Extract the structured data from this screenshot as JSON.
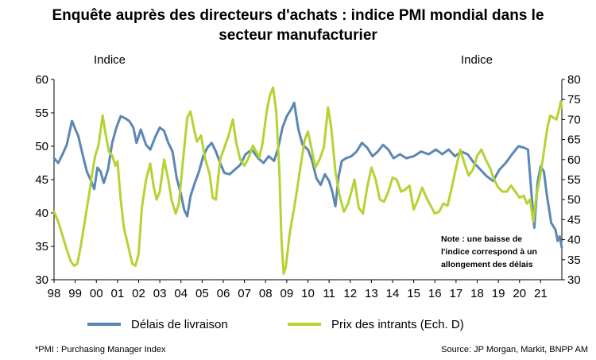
{
  "chart_data": {
    "type": "line",
    "title_lines": [
      "Enquête auprès des directeurs d'achats : indice PMI mondial dans le",
      "secteur manufacturier"
    ],
    "left_axis_unit": "Indice",
    "right_axis_unit": "Indice",
    "ylim_left": [
      30,
      60
    ],
    "ylim_right": [
      30,
      80
    ],
    "yticks_left": [
      "30",
      "35",
      "40",
      "45",
      "50",
      "55",
      "60"
    ],
    "yticks_right": [
      "30",
      "35",
      "40",
      "45",
      "50",
      "55",
      "60",
      "65",
      "70",
      "75",
      "80"
    ],
    "xticks": [
      "98",
      "99",
      "00",
      "01",
      "02",
      "03",
      "04",
      "05",
      "06",
      "07",
      "08",
      "09",
      "10",
      "11",
      "12",
      "13",
      "14",
      "15",
      "16",
      "17",
      "18",
      "19",
      "20",
      "21"
    ],
    "xlim": [
      1998.0,
      2022.0
    ],
    "grid": false,
    "legend_position": "bottom",
    "series": [
      {
        "name": "Délais de livraison",
        "axis": "left",
        "color": "#5B87B5",
        "points": [
          [
            1998.0,
            48.2
          ],
          [
            1998.2,
            47.5
          ],
          [
            1998.4,
            48.8
          ],
          [
            1998.6,
            50.2
          ],
          [
            1998.85,
            53.8
          ],
          [
            1999.0,
            52.6
          ],
          [
            1999.15,
            51.5
          ],
          [
            1999.35,
            48.8
          ],
          [
            1999.55,
            46.2
          ],
          [
            1999.75,
            44.8
          ],
          [
            1999.9,
            43.6
          ],
          [
            2000.05,
            46.8
          ],
          [
            2000.2,
            46.2
          ],
          [
            2000.35,
            44.5
          ],
          [
            2000.55,
            46.5
          ],
          [
            2000.75,
            50.5
          ],
          [
            2000.95,
            52.8
          ],
          [
            2001.15,
            54.5
          ],
          [
            2001.35,
            54.2
          ],
          [
            2001.55,
            53.8
          ],
          [
            2001.75,
            52.8
          ],
          [
            2001.9,
            50.5
          ],
          [
            2002.1,
            52.5
          ],
          [
            2002.35,
            50.2
          ],
          [
            2002.55,
            49.5
          ],
          [
            2002.8,
            51.5
          ],
          [
            2003.0,
            52.8
          ],
          [
            2003.2,
            52.3
          ],
          [
            2003.4,
            50.5
          ],
          [
            2003.6,
            49.2
          ],
          [
            2003.8,
            45.2
          ],
          [
            2004.0,
            42.8
          ],
          [
            2004.15,
            40.5
          ],
          [
            2004.3,
            39.5
          ],
          [
            2004.45,
            42.5
          ],
          [
            2004.65,
            44.5
          ],
          [
            2004.85,
            46.2
          ],
          [
            2005.05,
            48.5
          ],
          [
            2005.25,
            49.8
          ],
          [
            2005.45,
            50.5
          ],
          [
            2005.65,
            49.2
          ],
          [
            2005.85,
            47.5
          ],
          [
            2006.05,
            46.0
          ],
          [
            2006.3,
            45.8
          ],
          [
            2006.55,
            46.5
          ],
          [
            2006.8,
            47.2
          ],
          [
            2007.05,
            48.8
          ],
          [
            2007.35,
            49.5
          ],
          [
            2007.65,
            48.2
          ],
          [
            2007.9,
            47.5
          ],
          [
            2008.15,
            48.5
          ],
          [
            2008.4,
            47.8
          ],
          [
            2008.6,
            49.8
          ],
          [
            2008.8,
            52.8
          ],
          [
            2009.0,
            54.5
          ],
          [
            2009.2,
            55.5
          ],
          [
            2009.35,
            56.5
          ],
          [
            2009.55,
            52.5
          ],
          [
            2009.75,
            50.2
          ],
          [
            2010.0,
            49.5
          ],
          [
            2010.2,
            47.8
          ],
          [
            2010.4,
            45.2
          ],
          [
            2010.6,
            44.2
          ],
          [
            2010.8,
            45.8
          ],
          [
            2011.0,
            44.8
          ],
          [
            2011.15,
            43.2
          ],
          [
            2011.3,
            41.0
          ],
          [
            2011.45,
            45.5
          ],
          [
            2011.6,
            47.8
          ],
          [
            2011.8,
            48.2
          ],
          [
            2012.05,
            48.5
          ],
          [
            2012.3,
            49.2
          ],
          [
            2012.55,
            50.5
          ],
          [
            2012.8,
            49.8
          ],
          [
            2013.05,
            48.5
          ],
          [
            2013.3,
            49.2
          ],
          [
            2013.55,
            50.2
          ],
          [
            2013.8,
            49.5
          ],
          [
            2014.05,
            48.2
          ],
          [
            2014.35,
            48.8
          ],
          [
            2014.65,
            48.2
          ],
          [
            2015.0,
            48.5
          ],
          [
            2015.35,
            49.2
          ],
          [
            2015.7,
            48.8
          ],
          [
            2016.05,
            49.5
          ],
          [
            2016.35,
            48.8
          ],
          [
            2016.65,
            49.5
          ],
          [
            2016.95,
            48.5
          ],
          [
            2017.25,
            49.2
          ],
          [
            2017.55,
            48.8
          ],
          [
            2017.85,
            47.5
          ],
          [
            2018.15,
            46.5
          ],
          [
            2018.45,
            45.5
          ],
          [
            2018.75,
            44.8
          ],
          [
            2019.05,
            46.5
          ],
          [
            2019.35,
            47.5
          ],
          [
            2019.65,
            48.8
          ],
          [
            2019.95,
            50.0
          ],
          [
            2020.2,
            49.8
          ],
          [
            2020.4,
            49.5
          ],
          [
            2020.55,
            43.5
          ],
          [
            2020.7,
            37.8
          ],
          [
            2020.85,
            44.5
          ],
          [
            2021.0,
            47.0
          ],
          [
            2021.15,
            46.2
          ],
          [
            2021.3,
            42.5
          ],
          [
            2021.5,
            38.5
          ],
          [
            2021.7,
            37.5
          ],
          [
            2021.8,
            35.8
          ],
          [
            2021.9,
            36.5
          ],
          [
            2022.0,
            34.8
          ]
        ]
      },
      {
        "name": "Prix des intrants (Ech. D)",
        "axis": "right",
        "color": "#B5D334",
        "points": [
          [
            1998.0,
            47.0
          ],
          [
            1998.2,
            44.5
          ],
          [
            1998.4,
            41.0
          ],
          [
            1998.6,
            37.5
          ],
          [
            1998.8,
            34.5
          ],
          [
            1998.95,
            33.5
          ],
          [
            1999.1,
            34.0
          ],
          [
            1999.25,
            38.0
          ],
          [
            1999.45,
            44.5
          ],
          [
            1999.65,
            51.0
          ],
          [
            1999.8,
            56.5
          ],
          [
            1999.95,
            61.0
          ],
          [
            2000.1,
            63.5
          ],
          [
            2000.3,
            71.0
          ],
          [
            2000.45,
            66.0
          ],
          [
            2000.6,
            62.0
          ],
          [
            2000.75,
            61.0
          ],
          [
            2000.9,
            58.5
          ],
          [
            2001.0,
            59.5
          ],
          [
            2001.15,
            50.0
          ],
          [
            2001.3,
            43.0
          ],
          [
            2001.5,
            38.5
          ],
          [
            2001.7,
            34.0
          ],
          [
            2001.85,
            33.5
          ],
          [
            2002.0,
            36.5
          ],
          [
            2002.15,
            48.0
          ],
          [
            2002.35,
            55.0
          ],
          [
            2002.55,
            59.0
          ],
          [
            2002.7,
            53.5
          ],
          [
            2002.85,
            50.0
          ],
          [
            2003.0,
            52.0
          ],
          [
            2003.2,
            60.0
          ],
          [
            2003.4,
            55.0
          ],
          [
            2003.55,
            50.0
          ],
          [
            2003.75,
            46.5
          ],
          [
            2003.9,
            49.0
          ],
          [
            2004.1,
            60.0
          ],
          [
            2004.3,
            70.5
          ],
          [
            2004.45,
            72.0
          ],
          [
            2004.6,
            68.0
          ],
          [
            2004.75,
            64.5
          ],
          [
            2004.95,
            66.0
          ],
          [
            2005.15,
            60.0
          ],
          [
            2005.35,
            56.5
          ],
          [
            2005.5,
            50.5
          ],
          [
            2005.65,
            50.0
          ],
          [
            2005.85,
            60.0
          ],
          [
            2006.05,
            63.0
          ],
          [
            2006.25,
            66.0
          ],
          [
            2006.45,
            70.0
          ],
          [
            2006.6,
            64.5
          ],
          [
            2006.8,
            60.0
          ],
          [
            2007.0,
            58.5
          ],
          [
            2007.2,
            60.5
          ],
          [
            2007.4,
            63.5
          ],
          [
            2007.55,
            62.0
          ],
          [
            2007.7,
            60.5
          ],
          [
            2007.85,
            64.0
          ],
          [
            2008.05,
            72.0
          ],
          [
            2008.2,
            76.0
          ],
          [
            2008.35,
            78.0
          ],
          [
            2008.5,
            72.0
          ],
          [
            2008.65,
            57.0
          ],
          [
            2008.75,
            40.0
          ],
          [
            2008.85,
            31.5
          ],
          [
            2008.95,
            33.0
          ],
          [
            2009.15,
            42.0
          ],
          [
            2009.35,
            48.0
          ],
          [
            2009.5,
            53.0
          ],
          [
            2009.7,
            60.0
          ],
          [
            2009.85,
            65.0
          ],
          [
            2010.0,
            67.0
          ],
          [
            2010.2,
            62.0
          ],
          [
            2010.35,
            58.0
          ],
          [
            2010.55,
            60.0
          ],
          [
            2010.75,
            63.0
          ],
          [
            2010.95,
            73.0
          ],
          [
            2011.1,
            68.0
          ],
          [
            2011.3,
            57.0
          ],
          [
            2011.5,
            51.0
          ],
          [
            2011.7,
            47.0
          ],
          [
            2011.9,
            49.0
          ],
          [
            2012.05,
            52.0
          ],
          [
            2012.2,
            55.0
          ],
          [
            2012.4,
            48.0
          ],
          [
            2012.6,
            46.5
          ],
          [
            2012.8,
            53.0
          ],
          [
            2013.0,
            58.0
          ],
          [
            2013.2,
            55.0
          ],
          [
            2013.4,
            50.0
          ],
          [
            2013.6,
            49.5
          ],
          [
            2013.8,
            52.0
          ],
          [
            2014.0,
            55.5
          ],
          [
            2014.2,
            55.0
          ],
          [
            2014.4,
            52.0
          ],
          [
            2014.6,
            52.5
          ],
          [
            2014.8,
            53.5
          ],
          [
            2015.0,
            47.5
          ],
          [
            2015.2,
            50.0
          ],
          [
            2015.4,
            53.0
          ],
          [
            2015.6,
            50.5
          ],
          [
            2015.8,
            48.5
          ],
          [
            2016.0,
            46.5
          ],
          [
            2016.2,
            47.0
          ],
          [
            2016.4,
            49.0
          ],
          [
            2016.6,
            48.5
          ],
          [
            2016.8,
            53.0
          ],
          [
            2017.0,
            58.0
          ],
          [
            2017.2,
            62.5
          ],
          [
            2017.4,
            59.0
          ],
          [
            2017.6,
            56.0
          ],
          [
            2017.8,
            57.5
          ],
          [
            2018.0,
            61.0
          ],
          [
            2018.2,
            62.5
          ],
          [
            2018.4,
            60.0
          ],
          [
            2018.6,
            58.0
          ],
          [
            2018.8,
            55.0
          ],
          [
            2019.0,
            53.0
          ],
          [
            2019.2,
            52.0
          ],
          [
            2019.4,
            52.0
          ],
          [
            2019.6,
            53.5
          ],
          [
            2019.8,
            52.0
          ],
          [
            2020.0,
            50.5
          ],
          [
            2020.2,
            51.0
          ],
          [
            2020.35,
            49.0
          ],
          [
            2020.5,
            50.0
          ],
          [
            2020.65,
            44.5
          ],
          [
            2020.8,
            51.0
          ],
          [
            2020.95,
            55.0
          ],
          [
            2021.1,
            60.0
          ],
          [
            2021.3,
            67.5
          ],
          [
            2021.45,
            71.0
          ],
          [
            2021.6,
            70.5
          ],
          [
            2021.75,
            70.0
          ],
          [
            2021.85,
            72.0
          ],
          [
            2021.95,
            74.5
          ],
          [
            2022.0,
            73.0
          ]
        ]
      }
    ],
    "annotation": [
      "Note : une baisse de",
      "l'indice correspond à un",
      "allongement des délais"
    ]
  },
  "footnote_left": "*PMI : Purchasing Manager Index",
  "footnote_right": "Source: JP Morgan, Markit, BNPP AM"
}
